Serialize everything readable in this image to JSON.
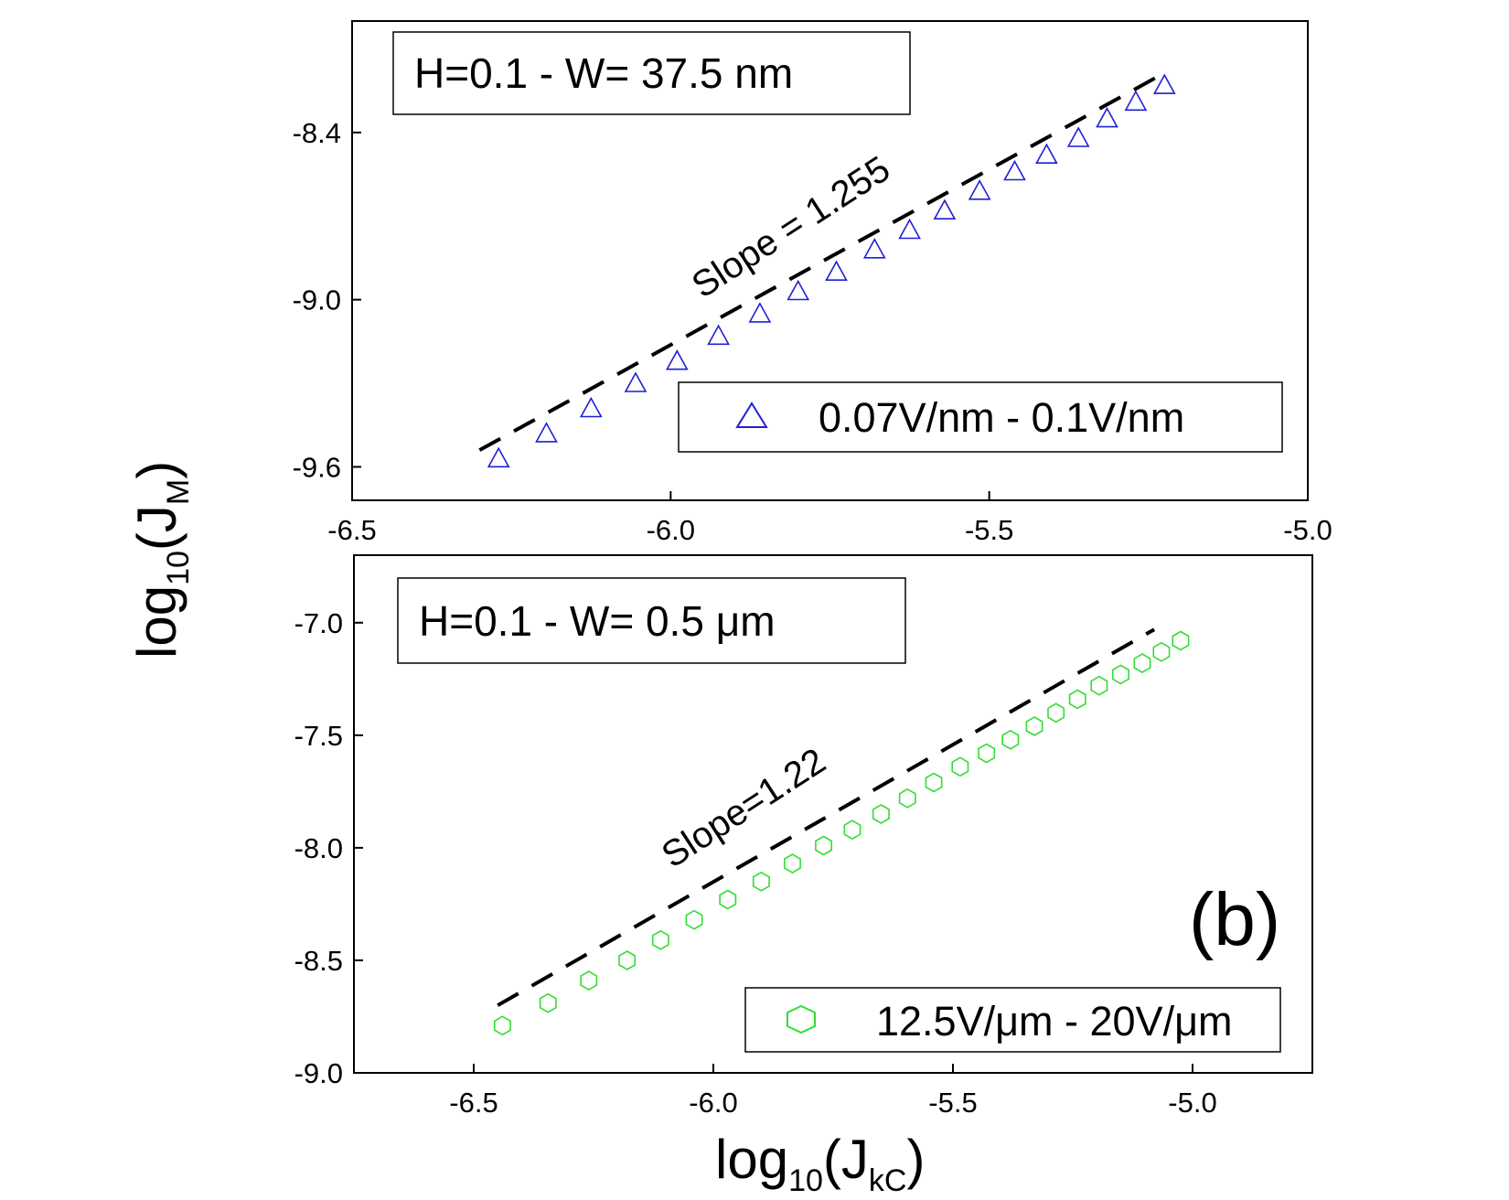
{
  "chart_data": [
    {
      "type": "scatter",
      "panel": "top",
      "annotation_box": "H=0.1 - W= 37.5 nm",
      "slope_label": "Slope = 1.255",
      "xlim": [
        -6.5,
        -5.0
      ],
      "ylim": [
        -9.72,
        -8.0
      ],
      "x_ticks": [
        -6.5,
        -6.0,
        -5.5,
        -5.0
      ],
      "x_tick_labels": [
        "-6.5",
        "-6.0",
        "-5.5",
        "-5.0"
      ],
      "y_ticks": [
        -8.4,
        -9.0,
        -9.6
      ],
      "y_tick_labels": [
        "-8.4",
        "-9.0",
        "-9.6"
      ],
      "fit_line": {
        "x": [
          -6.3,
          -5.22
        ],
        "y": [
          -9.54,
          -8.18
        ]
      },
      "series": [
        {
          "name": "0.07V/nm - 0.1V/nm",
          "marker": "triangle",
          "color": "#1f1fd6",
          "x": [
            -6.27,
            -6.195,
            -6.125,
            -6.055,
            -5.99,
            -5.925,
            -5.86,
            -5.8,
            -5.74,
            -5.68,
            -5.625,
            -5.57,
            -5.515,
            -5.46,
            -5.41,
            -5.36,
            -5.315,
            -5.27,
            -5.225
          ],
          "y": [
            -9.57,
            -9.48,
            -9.39,
            -9.3,
            -9.22,
            -9.13,
            -9.05,
            -8.97,
            -8.9,
            -8.82,
            -8.75,
            -8.68,
            -8.61,
            -8.54,
            -8.48,
            -8.42,
            -8.35,
            -8.29,
            -8.23
          ]
        }
      ]
    },
    {
      "type": "scatter",
      "panel": "bottom",
      "annotation_box_prefix": "H=0.1 - W= 0.5 ",
      "annotation_box_unit": "μm",
      "slope_label": "Slope=1.22",
      "panel_label": "(b)",
      "xlabel": "log10(JkC)",
      "xlabel_main": "log",
      "xlabel_sub1": "10",
      "xlabel_mid": "(J",
      "xlabel_sub2": "kC",
      "xlabel_end": ")",
      "xlim": [
        -6.75,
        -4.75
      ],
      "ylim": [
        -9.0,
        -6.7
      ],
      "x_ticks": [
        -6.5,
        -6.0,
        -5.5,
        -5.0
      ],
      "x_tick_labels": [
        "-6.5",
        "-6.0",
        "-5.5",
        "-5.0"
      ],
      "y_ticks": [
        -7.0,
        -7.5,
        -8.0,
        -8.5,
        -9.0
      ],
      "y_tick_labels": [
        "-7.0",
        "-7.5",
        "-8.0",
        "-8.5",
        "-9.0"
      ],
      "fit_line": {
        "x": [
          -6.45,
          -5.08
        ],
        "y": [
          -8.7,
          -7.03
        ]
      },
      "series": [
        {
          "name": "12.5V/μm - 20V/μm",
          "marker": "hexagon",
          "color": "#33dd33",
          "x": [
            -6.44,
            -6.345,
            -6.26,
            -6.18,
            -6.11,
            -6.04,
            -5.97,
            -5.9,
            -5.835,
            -5.77,
            -5.71,
            -5.65,
            -5.595,
            -5.54,
            -5.485,
            -5.43,
            -5.38,
            -5.33,
            -5.285,
            -5.24,
            -5.195,
            -5.15,
            -5.105,
            -5.065,
            -5.025
          ],
          "y": [
            -8.79,
            -8.69,
            -8.59,
            -8.5,
            -8.41,
            -8.32,
            -8.23,
            -8.15,
            -8.07,
            -7.99,
            -7.92,
            -7.85,
            -7.78,
            -7.71,
            -7.64,
            -7.58,
            -7.52,
            -7.46,
            -7.4,
            -7.34,
            -7.28,
            -7.23,
            -7.18,
            -7.13,
            -7.08
          ]
        }
      ]
    }
  ],
  "shared_ylabel_main": "log",
  "shared_ylabel_sub1": "10",
  "shared_ylabel_mid": "(J",
  "shared_ylabel_sub2": "M",
  "shared_ylabel_end": ")"
}
